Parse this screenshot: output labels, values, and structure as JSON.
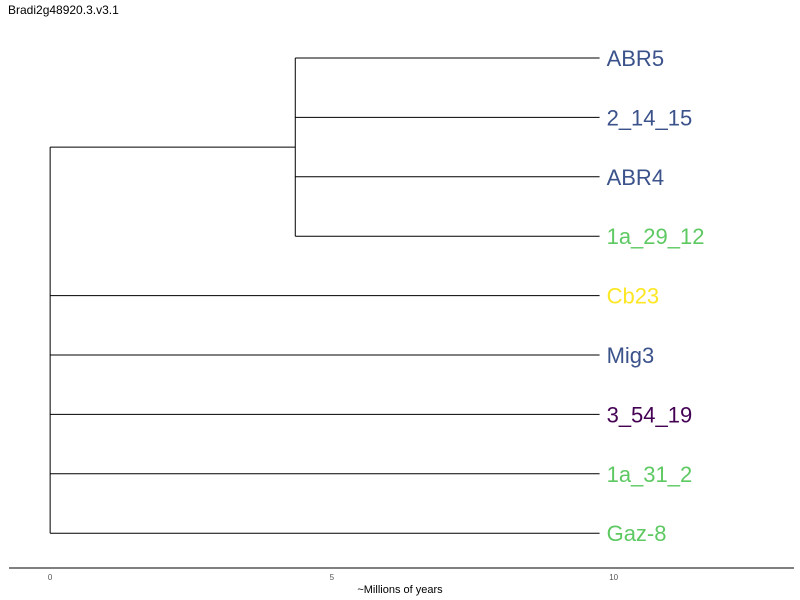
{
  "title": "Bradi2g48920.3.v3.1",
  "axis": {
    "label": "~Millions of years",
    "ticks": [
      0,
      5,
      10
    ],
    "range": [
      -0.73,
      13.2
    ]
  },
  "tree": {
    "root_x": 0,
    "clades": [
      {
        "node_x": 4.35,
        "leaves": [
          0,
          1,
          2,
          3
        ]
      },
      {
        "node_x": 0,
        "leaves": [
          4,
          5,
          6,
          7,
          8
        ]
      }
    ]
  },
  "leaves": [
    {
      "name": "ABR5",
      "x": 9.75,
      "color": "#3b528b"
    },
    {
      "name": "2_14_15",
      "x": 9.75,
      "color": "#3b528b"
    },
    {
      "name": "ABR4",
      "x": 9.75,
      "color": "#3b528b"
    },
    {
      "name": "1a_29_12",
      "x": 9.75,
      "color": "#5ec962"
    },
    {
      "name": "Cb23",
      "x": 9.75,
      "color": "#fde725"
    },
    {
      "name": "Mig3",
      "x": 9.75,
      "color": "#3b528b"
    },
    {
      "name": "3_54_19",
      "x": 9.75,
      "color": "#440154"
    },
    {
      "name": "1a_31_2",
      "x": 9.75,
      "color": "#5ec962"
    },
    {
      "name": "Gaz-8",
      "x": 9.75,
      "color": "#5ec962"
    }
  ]
}
